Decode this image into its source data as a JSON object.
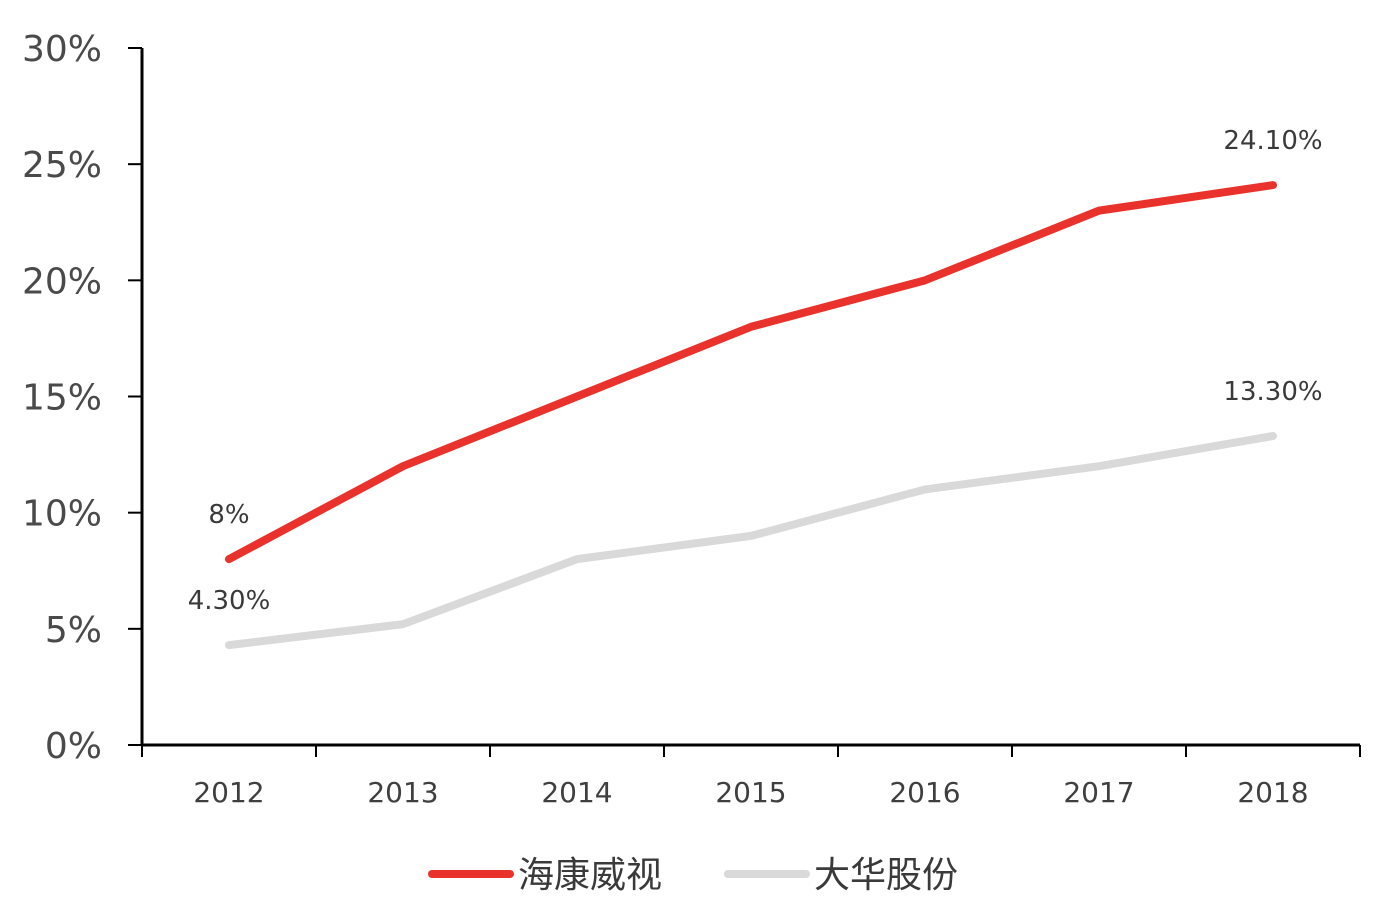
{
  "chart_data": {
    "type": "line",
    "title": "",
    "xlabel": "",
    "ylabel": "",
    "categories": [
      "2012",
      "2013",
      "2014",
      "2015",
      "2016",
      "2017",
      "2018"
    ],
    "y_ticks": [
      "0%",
      "5%",
      "10%",
      "15%",
      "20%",
      "25%",
      "30%"
    ],
    "ylim": [
      0,
      30
    ],
    "grid": false,
    "legend_position": "bottom",
    "series": [
      {
        "name": "海康威视",
        "color": "#e8322b",
        "values": [
          8.0,
          12.0,
          15.0,
          18.0,
          20.0,
          23.0,
          24.1
        ]
      },
      {
        "name": "大华股份",
        "color": "#d9d9d9",
        "values": [
          4.3,
          5.2,
          8.0,
          9.0,
          11.0,
          12.0,
          13.3
        ]
      }
    ],
    "data_labels": [
      {
        "series": 0,
        "point": 0,
        "text": "8%"
      },
      {
        "series": 0,
        "point": 6,
        "text": "24.10%"
      },
      {
        "series": 1,
        "point": 0,
        "text": "4.30%"
      },
      {
        "series": 1,
        "point": 6,
        "text": "13.30%"
      }
    ]
  }
}
